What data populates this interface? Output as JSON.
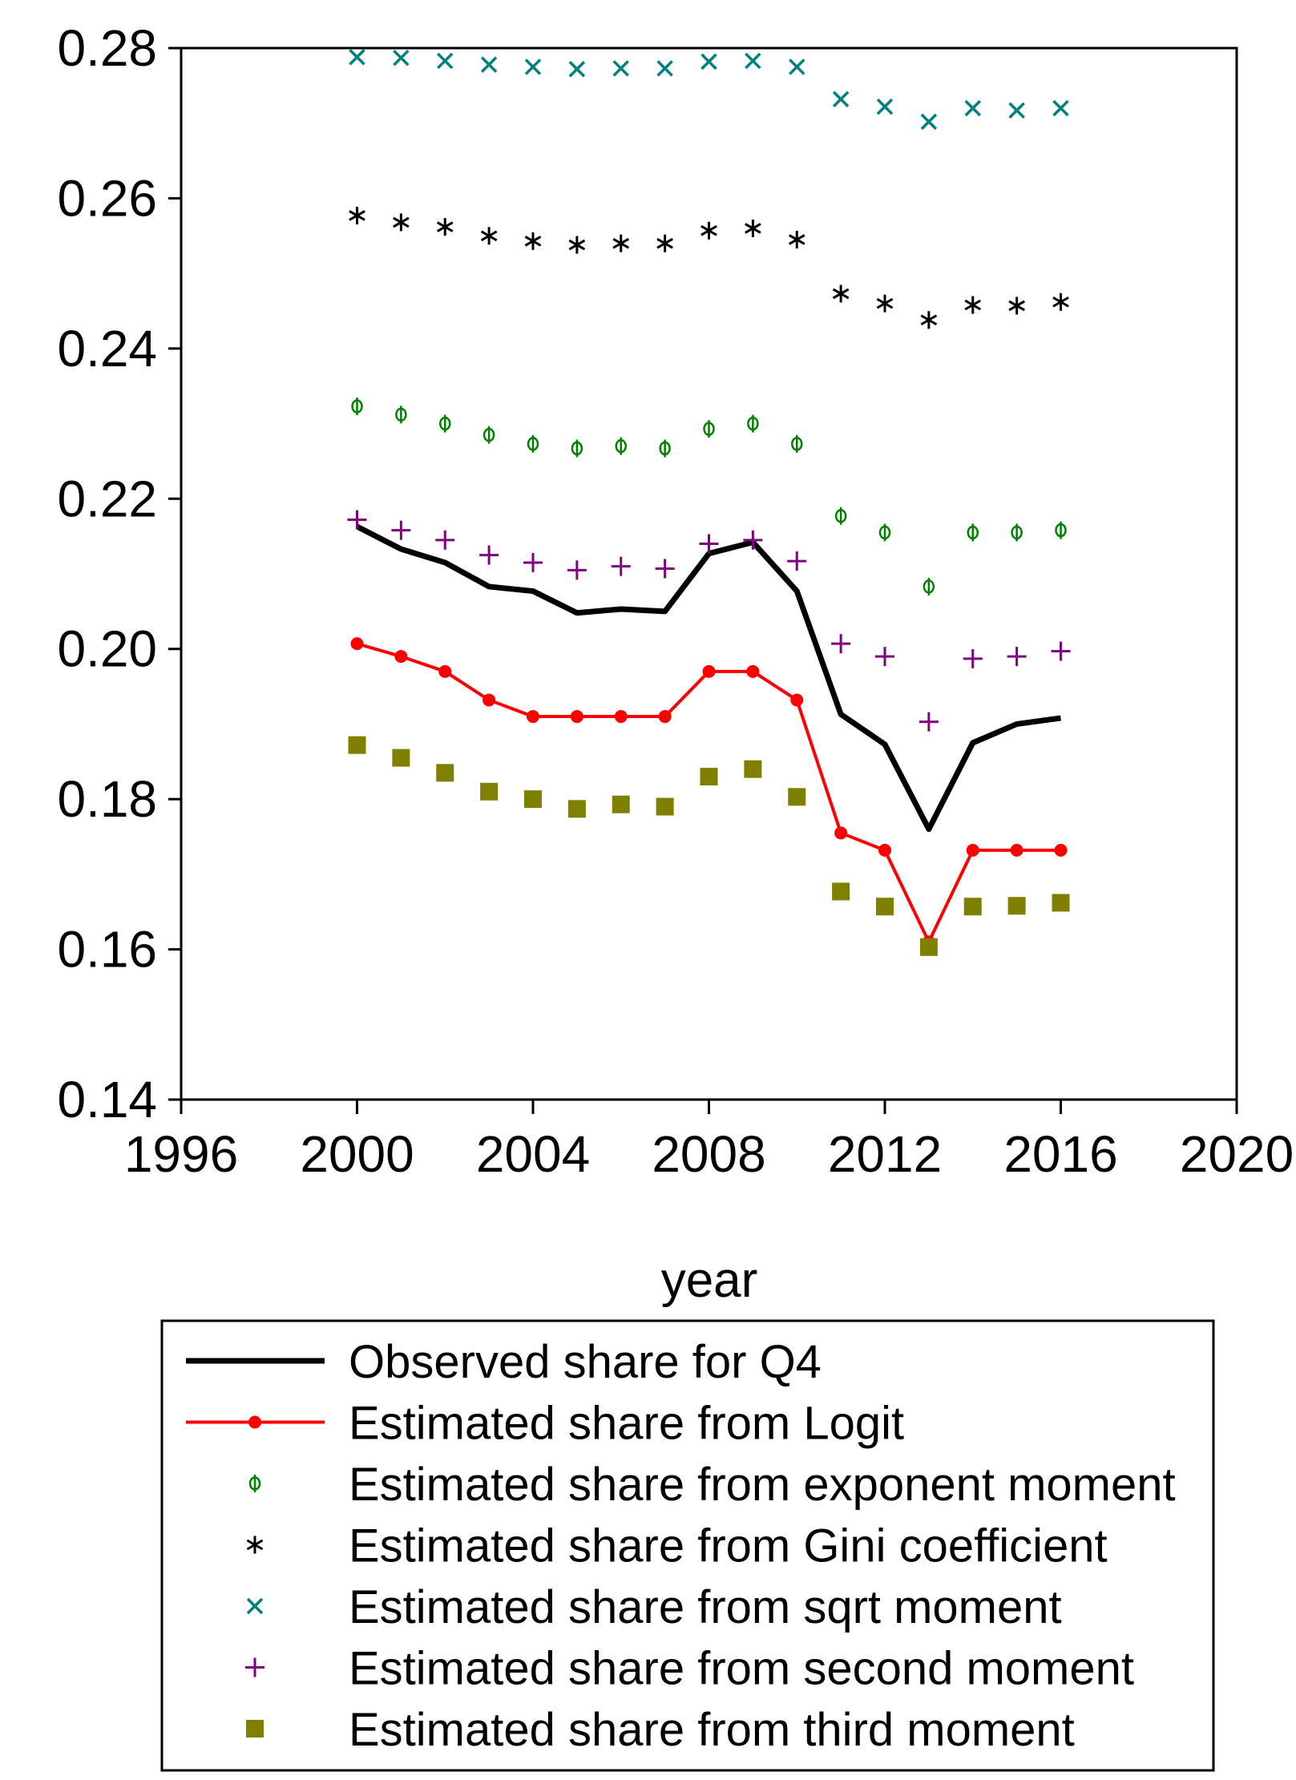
{
  "chart_data": {
    "type": "line",
    "title": "",
    "xlabel": "year",
    "ylabel": "",
    "xlim": [
      1996,
      2020
    ],
    "ylim": [
      0.14,
      0.28
    ],
    "x_ticks": [
      "1996",
      "2000",
      "2004",
      "2008",
      "2012",
      "2016",
      "2020"
    ],
    "y_ticks": [
      "0.14",
      "0.16",
      "0.18",
      "0.20",
      "0.22",
      "0.24",
      "0.26",
      "0.28"
    ],
    "grid": false,
    "legend_position": "bottom",
    "x": [
      2000,
      2001,
      2002,
      2003,
      2004,
      2005,
      2006,
      2007,
      2008,
      2009,
      2010,
      2011,
      2012,
      2013,
      2014,
      2015,
      2016
    ],
    "series": [
      {
        "name": "Observed share for Q4",
        "style": "line",
        "color": "#000000",
        "values": [
          0.2163,
          0.2133,
          0.2115,
          0.2083,
          0.2077,
          0.2048,
          0.2053,
          0.205,
          0.2127,
          0.2142,
          0.2077,
          0.1913,
          0.1873,
          0.176,
          0.1875,
          0.19,
          0.1908
        ]
      },
      {
        "name": "Estimated share from Logit",
        "style": "line-dot",
        "color": "#ff0000",
        "values": [
          0.2007,
          0.199,
          0.197,
          0.1932,
          0.191,
          0.191,
          0.191,
          0.191,
          0.197,
          0.197,
          0.1932,
          0.1755,
          0.1732,
          0.161,
          0.1732,
          0.1732,
          0.1732
        ]
      },
      {
        "name": "Estimated share from exponent moment",
        "style": "marker-phi",
        "color": "#008000",
        "values": [
          0.2323,
          0.2312,
          0.23,
          0.2285,
          0.2273,
          0.2267,
          0.227,
          0.2267,
          0.2293,
          0.23,
          0.2273,
          0.2177,
          0.2155,
          0.2083,
          0.2155,
          0.2155,
          0.2158
        ]
      },
      {
        "name": "Estimated share from Gini coefficient",
        "style": "marker-star",
        "color": "#000000",
        "values": [
          0.2577,
          0.2568,
          0.2562,
          0.255,
          0.2543,
          0.2538,
          0.254,
          0.254,
          0.2557,
          0.256,
          0.2545,
          0.2473,
          0.246,
          0.2438,
          0.2458,
          0.2457,
          0.2462
        ]
      },
      {
        "name": "Estimated share from sqrt moment",
        "style": "marker-x",
        "color": "#008080",
        "values": [
          0.2788,
          0.2787,
          0.2783,
          0.2778,
          0.2775,
          0.2772,
          0.2773,
          0.2773,
          0.2782,
          0.2783,
          0.2775,
          0.2732,
          0.2722,
          0.2702,
          0.272,
          0.2717,
          0.272
        ]
      },
      {
        "name": "Estimated share from second moment",
        "style": "marker-plus",
        "color": "#800080",
        "values": [
          0.2172,
          0.2158,
          0.2145,
          0.2125,
          0.2115,
          0.2105,
          0.211,
          0.2107,
          0.214,
          0.2145,
          0.2117,
          0.2007,
          0.199,
          0.1903,
          0.1987,
          0.199,
          0.1997
        ]
      },
      {
        "name": "Estimated share from third moment",
        "style": "marker-square",
        "color": "#808000",
        "values": [
          0.1872,
          0.1855,
          0.1835,
          0.181,
          0.18,
          0.1787,
          0.1793,
          0.179,
          0.183,
          0.184,
          0.1803,
          0.1677,
          0.1657,
          0.1603,
          0.1657,
          0.1658,
          0.1662
        ]
      }
    ]
  }
}
